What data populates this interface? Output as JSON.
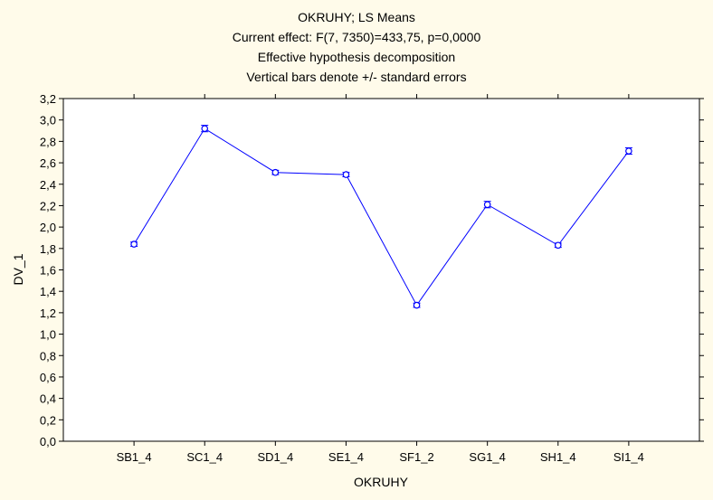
{
  "chart_data": {
    "type": "line",
    "title": [
      "OKRUHY; LS Means",
      "Current effect: F(7, 7350)=433,75, p=0,0000",
      "Effective hypothesis decomposition",
      "Vertical bars denote +/- standard errors"
    ],
    "xlabel": "OKRUHY",
    "ylabel": "DV_1",
    "categories": [
      "SB1_4",
      "SC1_4",
      "SD1_4",
      "SE1_4",
      "SF1_2",
      "SG1_4",
      "SH1_4",
      "SI1_4"
    ],
    "values": [
      1.84,
      2.92,
      2.51,
      2.49,
      1.27,
      2.21,
      1.83,
      2.71
    ],
    "std_errors": [
      0.02,
      0.03,
      0.02,
      0.02,
      0.02,
      0.03,
      0.02,
      0.03
    ],
    "ylim": [
      0.0,
      3.2
    ],
    "yticks": [
      "0,0",
      "0,2",
      "0,4",
      "0,6",
      "0,8",
      "1,0",
      "1,2",
      "1,4",
      "1,6",
      "1,8",
      "2,0",
      "2,2",
      "2,4",
      "2,6",
      "2,8",
      "3,0",
      "3,2"
    ],
    "grid": false,
    "line_color": "#0000ff",
    "background_color": "#fffbea",
    "plot_background_color": "#ffffff"
  }
}
